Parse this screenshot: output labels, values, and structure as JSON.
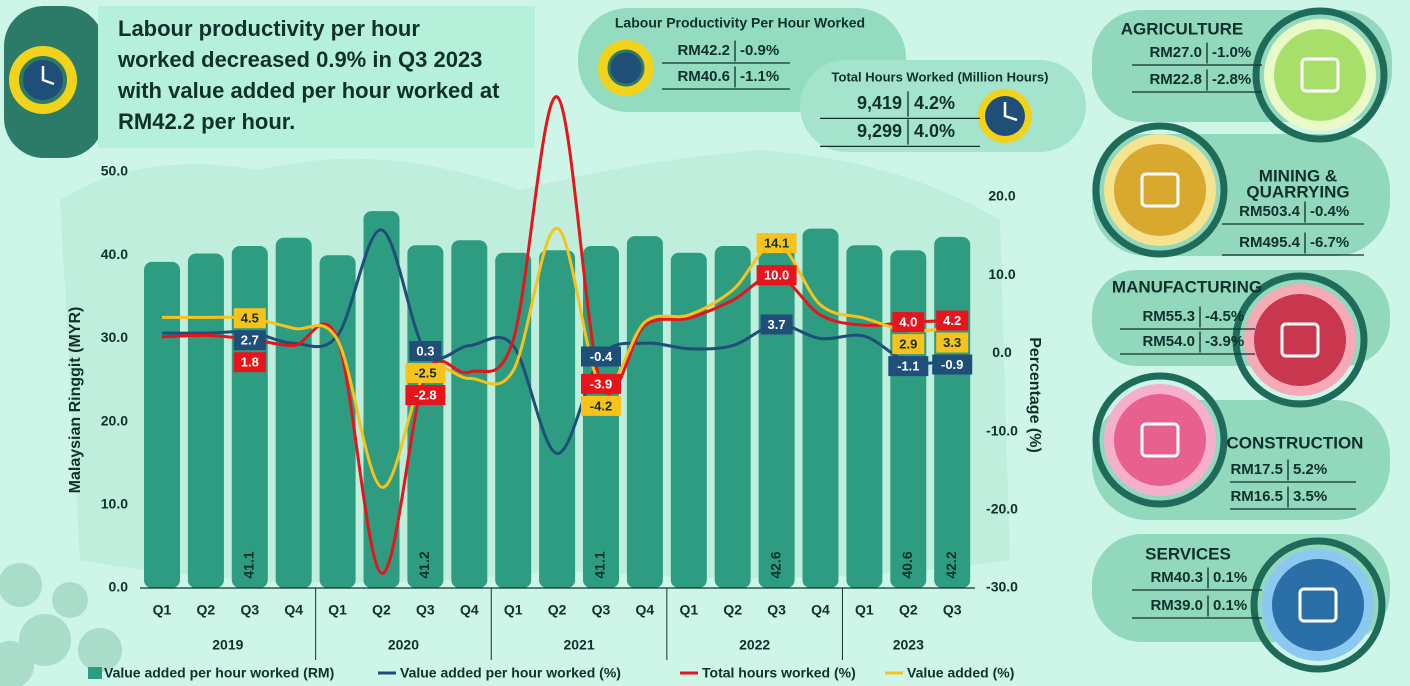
{
  "headline": [
    "Labour productivity per hour",
    "worked decreased 0.9% in Q3 2023",
    "with value added per hour worked at",
    "RM42.2 per hour."
  ],
  "productivity_panel": {
    "title": "Labour Productivity Per Hour Worked",
    "rows": [
      [
        "RM42.2",
        "-0.9%"
      ],
      [
        "RM40.6",
        "-1.1%"
      ]
    ]
  },
  "hours_panel": {
    "title": "Total Hours Worked (Million Hours)",
    "rows": [
      [
        "9,419",
        "4.2%"
      ],
      [
        "9,299",
        "4.0%"
      ]
    ]
  },
  "sectors": [
    {
      "name": [
        "AGRICULTURE"
      ],
      "rows": [
        [
          "RM27.0",
          "-1.0%"
        ],
        [
          "RM22.8",
          "-2.8%"
        ]
      ]
    },
    {
      "name": [
        "MINING &",
        "QUARRYING"
      ],
      "rows": [
        [
          "RM503.4",
          "-0.4%"
        ],
        [
          "RM495.4",
          "-6.7%"
        ]
      ]
    },
    {
      "name": [
        "MANUFACTURING"
      ],
      "rows": [
        [
          "RM55.3",
          "-4.5%"
        ],
        [
          "RM54.0",
          "-3.9%"
        ]
      ]
    },
    {
      "name": [
        "CONSTRUCTION"
      ],
      "rows": [
        [
          "RM17.5",
          "5.2%"
        ],
        [
          "RM16.5",
          "3.5%"
        ]
      ]
    },
    {
      "name": [
        "SERVICES"
      ],
      "rows": [
        [
          "RM40.3",
          "0.1%"
        ],
        [
          "RM39.0",
          "0.1%"
        ]
      ]
    }
  ],
  "chart_data": {
    "type": "bar",
    "y_label": "Malaysian Ringgit (MYR)",
    "y2_label": "Percentage (%)",
    "groups": [
      {
        "label": "2019",
        "categories": [
          "Q1",
          "Q2",
          "Q3",
          "Q4"
        ]
      },
      {
        "label": "2020",
        "categories": [
          "Q1",
          "Q2",
          "Q3",
          "Q4"
        ]
      },
      {
        "label": "2021",
        "categories": [
          "Q1",
          "Q2",
          "Q3",
          "Q4"
        ]
      },
      {
        "label": "2022",
        "categories": [
          "Q1",
          "Q2",
          "Q3",
          "Q4"
        ]
      },
      {
        "label": "2023",
        "categories": [
          "Q1",
          "Q2",
          "Q3"
        ]
      }
    ],
    "ylim": [
      0,
      50
    ],
    "yticks": [
      {
        "value": 0,
        "label": "0.0"
      },
      {
        "value": 10,
        "label": "10.0"
      },
      {
        "value": 20,
        "label": "20.0"
      },
      {
        "value": 30,
        "label": "30.0"
      },
      {
        "value": 40,
        "label": "40.0"
      },
      {
        "value": 50,
        "label": "50.0"
      }
    ],
    "y2lim": [
      -30,
      20
    ],
    "y2ticks": [
      {
        "value": -30,
        "label": "-30.0"
      },
      {
        "value": -20,
        "label": "-20.0"
      },
      {
        "value": -10,
        "label": "-10.0"
      },
      {
        "value": 0,
        "label": "0.0"
      },
      {
        "value": 10,
        "label": "10.0"
      },
      {
        "value": 20,
        "label": "20.0"
      }
    ],
    "legend": "bottom",
    "series": [
      {
        "name": "Value added per hour worked (RM)",
        "type": "bar",
        "color": "#2e9c80",
        "values": [
          39.2,
          40.2,
          41.1,
          42.1,
          40.0,
          45.3,
          41.2,
          41.8,
          40.3,
          40.6,
          41.1,
          42.3,
          40.3,
          41.1,
          42.6,
          43.2,
          41.2,
          40.6,
          42.2
        ],
        "value_labels": [
          null,
          null,
          "41.1",
          null,
          null,
          null,
          "41.2",
          null,
          null,
          null,
          "41.1",
          null,
          null,
          null,
          "42.6",
          null,
          null,
          "40.6",
          "42.2"
        ]
      },
      {
        "name": "Value added per hour worked (%)",
        "type": "line",
        "axis": "y2",
        "color": "#1f4e79",
        "values": [
          2.6,
          2.6,
          2.7,
          1.3,
          2.3,
          15.8,
          0.3,
          1.0,
          1.0,
          -12.8,
          -0.4,
          1.3,
          0.6,
          1.0,
          3.7,
          1.9,
          2.2,
          -1.1,
          -0.9
        ],
        "value_labels": [
          null,
          null,
          "2.7",
          null,
          null,
          null,
          "0.3",
          null,
          null,
          null,
          "-0.4",
          null,
          null,
          null,
          "3.7",
          null,
          null,
          "-1.1",
          "-0.9"
        ]
      },
      {
        "name": "Total hours worked (%)",
        "type": "line",
        "axis": "y2",
        "color": "#e8141b",
        "values": [
          2.1,
          2.3,
          1.8,
          1.0,
          1.8,
          -28.1,
          -2.8,
          -2.4,
          1.7,
          32.8,
          -3.9,
          3.6,
          4.5,
          6.8,
          10.0,
          4.9,
          3.6,
          4.0,
          4.2
        ],
        "value_labels": [
          null,
          null,
          "1.8",
          null,
          null,
          null,
          "-2.8",
          null,
          null,
          null,
          "-3.9",
          null,
          null,
          null,
          "10.0",
          null,
          null,
          "4.0",
          "4.2"
        ]
      },
      {
        "name": "Value added (%)",
        "type": "line",
        "axis": "y2",
        "color": "#f7c21b",
        "values": [
          4.6,
          4.6,
          4.5,
          3.2,
          1.7,
          -17.1,
          -2.5,
          -3.2,
          -2.2,
          16.0,
          -4.2,
          4.0,
          4.9,
          8.1,
          14.1,
          6.2,
          4.5,
          2.9,
          3.3
        ],
        "value_labels": [
          null,
          null,
          "4.5",
          null,
          null,
          null,
          "-2.5",
          null,
          null,
          null,
          "-4.2",
          null,
          null,
          null,
          "14.1",
          null,
          null,
          "2.9",
          "3.3"
        ]
      }
    ]
  }
}
